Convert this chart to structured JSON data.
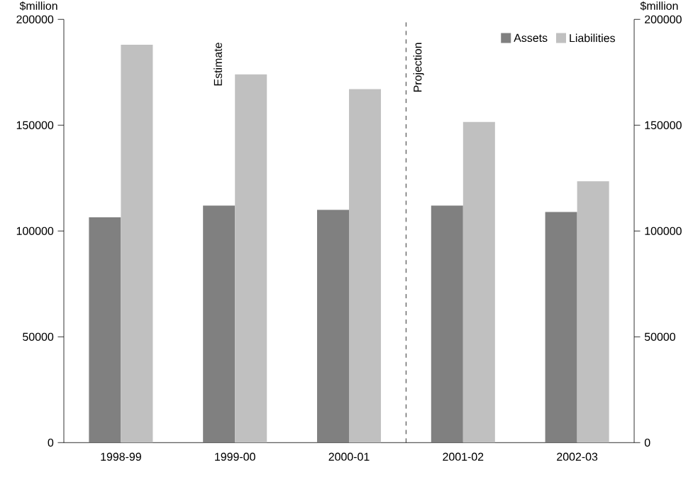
{
  "chart_data": {
    "type": "bar",
    "ylabel": "$million",
    "y2label": "$million",
    "categories": [
      "1998-99",
      "1999-00",
      "2000-01",
      "2001-02",
      "2002-03"
    ],
    "series": [
      {
        "name": "Assets",
        "color": "#808080",
        "values": [
          106500,
          112000,
          110000,
          112000,
          109000
        ]
      },
      {
        "name": "Liabilities",
        "color": "#c0c0c0",
        "values": [
          188000,
          174000,
          167000,
          151500,
          123500
        ]
      }
    ],
    "ylim": [
      0,
      200000
    ],
    "yticks": [
      0,
      50000,
      100000,
      150000,
      200000
    ],
    "y2lim": [
      0,
      200000
    ],
    "y2ticks": [
      0,
      50000,
      100000,
      150000,
      200000
    ],
    "annotations": [
      "Estimate",
      "Projection"
    ],
    "legend": "top right",
    "grid": false
  }
}
